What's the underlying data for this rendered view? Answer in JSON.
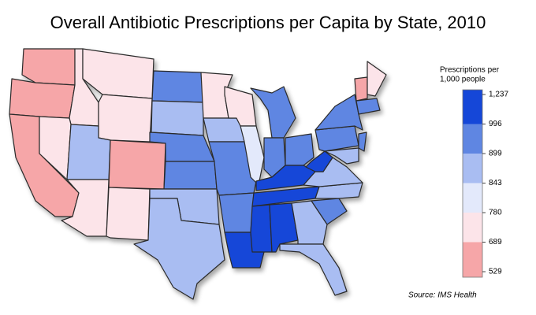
{
  "title": "Overall Antibiotic Prescriptions per Capita by State, 2010",
  "legend": {
    "title_lines": [
      "Prescriptions per",
      "1,000 people"
    ],
    "ticks": [
      529,
      689,
      780,
      843,
      899,
      996,
      {
        "value": 1237,
        "label": "1,237"
      }
    ],
    "colors": [
      "#f6a6a8",
      "#fce4e9",
      "#e3e9fb",
      "#a9bdf2",
      "#5f86e2",
      "#1547d8"
    ]
  },
  "source": "Source: IMS Health"
}
